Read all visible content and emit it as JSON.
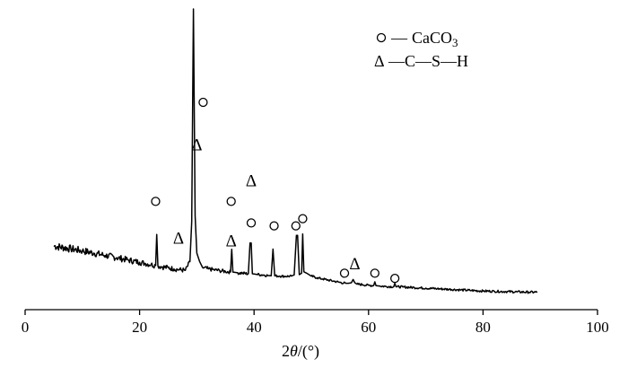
{
  "chart_data": {
    "type": "line",
    "title": "",
    "xlabel_prefix": "2",
    "xlabel_theta": "θ",
    "xlabel_suffix": "/(°)",
    "xlim": [
      0,
      100
    ],
    "x_ticks": [
      0,
      20,
      40,
      60,
      80,
      100
    ],
    "y_axis_shown": false,
    "grid": false,
    "legend_position": "top-right",
    "legend": [
      {
        "symbol": "circle",
        "sym_dash": "—",
        "label_main": "CaCO",
        "label_sub": "3"
      },
      {
        "symbol": "triangle",
        "triangle_char": "Δ",
        "label": "—C—S—H"
      }
    ],
    "series": [
      {
        "color": "#000000",
        "x": [
          5,
          8,
          10,
          12,
          14,
          16,
          18,
          20,
          21,
          22,
          22.8,
          23,
          23.2,
          24,
          25,
          26,
          27,
          28,
          28.8,
          29.1,
          29.4,
          29.7,
          30,
          30.5,
          31,
          32,
          33,
          34,
          35,
          35.9,
          36.1,
          36.3,
          37,
          38,
          39,
          39.3,
          39.5,
          39.7,
          40.5,
          41.5,
          42.5,
          43,
          43.3,
          43.6,
          44.5,
          45.5,
          46.5,
          47,
          47.4,
          47.6,
          47.9,
          48.3,
          48.5,
          48.7,
          49.2,
          50,
          51,
          52,
          53,
          54,
          55,
          56,
          56.5,
          57,
          57.3,
          57.6,
          58,
          59,
          60,
          60.9,
          61.1,
          61.3,
          62,
          63,
          64.4,
          64.6,
          64.8,
          66,
          68,
          70,
          72,
          74,
          76,
          78,
          80,
          82,
          84,
          86,
          88,
          89.5
        ],
        "y": [
          175,
          165,
          158,
          150,
          142,
          134,
          126,
          118,
          114,
          110,
          107,
          215,
          106,
          102,
          99,
          95,
          92,
          90,
          120,
          260,
          1000,
          280,
          150,
          120,
          100,
          95,
          92,
          89,
          86,
          84,
          163,
          84,
          82,
          80,
          78,
          185,
          185,
          78,
          76,
          74,
          72,
          71,
          164,
          71,
          70,
          69,
          70,
          74,
          212,
          212,
          75,
          80,
          217,
          85,
          80,
          70,
          64,
          60,
          56,
          52,
          48,
          45,
          45,
          47,
          58,
          47,
          42,
          40,
          38,
          37,
          50,
          37,
          35,
          34,
          33,
          45,
          33,
          32,
          30,
          28,
          26,
          24,
          22,
          20,
          18,
          17,
          16,
          15,
          14,
          14
        ]
      }
    ],
    "annotations": [
      {
        "x": 22.8,
        "y": 330,
        "symbol": "circle"
      },
      {
        "x": 26.8,
        "y": 205,
        "symbol": "triangle"
      },
      {
        "x": 31.1,
        "y": 675,
        "symbol": "circle"
      },
      {
        "x": 30.0,
        "y": 530,
        "symbol": "triangle"
      },
      {
        "x": 36.0,
        "y": 330,
        "symbol": "circle"
      },
      {
        "x": 36.0,
        "y": 195,
        "symbol": "triangle"
      },
      {
        "x": 39.5,
        "y": 405,
        "symbol": "triangle"
      },
      {
        "x": 39.5,
        "y": 255,
        "symbol": "circle"
      },
      {
        "x": 43.5,
        "y": 245,
        "symbol": "circle"
      },
      {
        "x": 47.3,
        "y": 245,
        "symbol": "circle"
      },
      {
        "x": 48.5,
        "y": 270,
        "symbol": "circle"
      },
      {
        "x": 55.8,
        "y": 80,
        "symbol": "circle"
      },
      {
        "x": 57.6,
        "y": 115,
        "symbol": "triangle"
      },
      {
        "x": 61.1,
        "y": 80,
        "symbol": "circle"
      },
      {
        "x": 64.6,
        "y": 62,
        "symbol": "circle"
      }
    ]
  }
}
